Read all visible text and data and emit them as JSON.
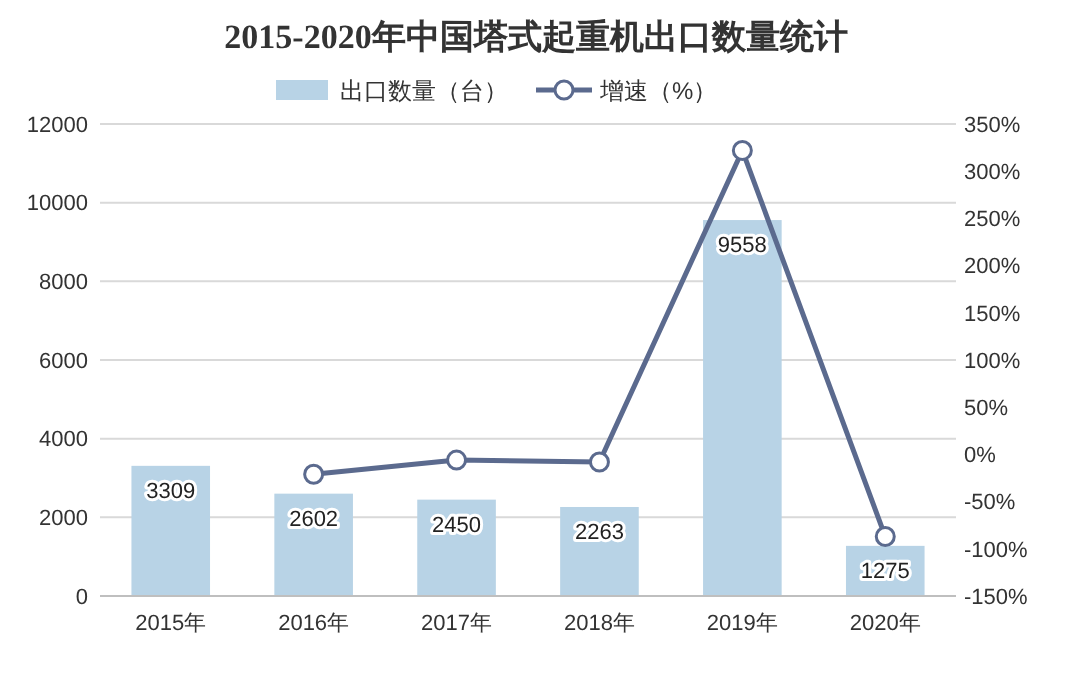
{
  "chart_data": {
    "type": "bar",
    "title": "2015-2020年中国塔式起重机出口数量统计",
    "categories": [
      "2015年",
      "2016年",
      "2017年",
      "2018年",
      "2019年",
      "2020年"
    ],
    "series": [
      {
        "name": "出口数量（台）",
        "color": "#b8d3e6",
        "values": [
          3309,
          2602,
          2450,
          2263,
          9558,
          1275
        ],
        "value_labels": [
          "3309",
          "2602",
          "2450",
          "2263",
          "9558",
          "1275"
        ]
      },
      {
        "name": "增速（%）",
        "type": "line",
        "axis": "y2",
        "color": "#5b6a8e",
        "marker": "circle",
        "values": [
          null,
          -21,
          -6,
          -8,
          322,
          -87
        ]
      }
    ],
    "ylim": [
      0,
      12000
    ],
    "yticks": [
      0,
      2000,
      4000,
      6000,
      8000,
      10000,
      12000
    ],
    "y2lim": [
      -150,
      350
    ],
    "y2ticks": [
      {
        "value": -150,
        "label": "-150%"
      },
      {
        "value": -100,
        "label": "-100%"
      },
      {
        "value": -50,
        "label": "-50%"
      },
      {
        "value": 0,
        "label": "0%"
      },
      {
        "value": 50,
        "label": "50%"
      },
      {
        "value": 100,
        "label": "100%"
      },
      {
        "value": 150,
        "label": "150%"
      },
      {
        "value": 200,
        "label": "200%"
      },
      {
        "value": 250,
        "label": "250%"
      },
      {
        "value": 300,
        "label": "300%"
      },
      {
        "value": 350,
        "label": "350%"
      }
    ],
    "grid": "y",
    "legend": "top"
  }
}
